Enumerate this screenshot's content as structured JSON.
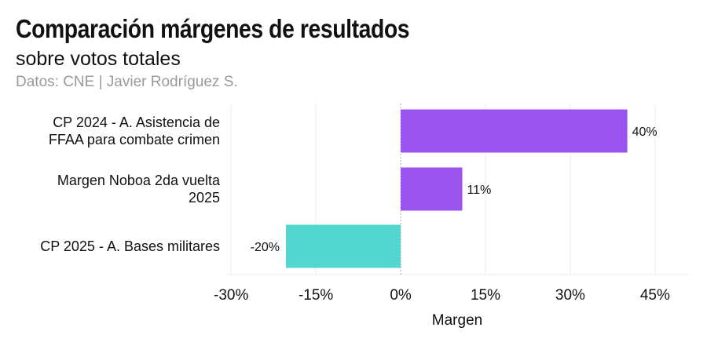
{
  "chart_data": {
    "type": "bar",
    "orientation": "horizontal",
    "title": "Comparación márgenes de resultados",
    "subtitle": "sobre votos totales",
    "caption": "Datos: CNE | Javier Rodríguez S.",
    "xlabel": "Margen",
    "ylabel": "",
    "xlim": [
      -31,
      51
    ],
    "xticks": [
      -30,
      -15,
      0,
      15,
      30,
      45
    ],
    "xtick_labels": [
      "-30%",
      "-15%",
      "0%",
      "15%",
      "30%",
      "45%"
    ],
    "grid": true,
    "categories": [
      [
        "CP 2024 - A. Asistencia de",
        "FFAA para combate crimen"
      ],
      [
        "Margen Noboa 2da vuelta",
        "2025"
      ],
      [
        "CP 2025 - A. Bases militares"
      ]
    ],
    "values": [
      40.1,
      10.9,
      -20.3
    ],
    "data_labels": [
      "40%",
      "11%",
      "-20%"
    ],
    "colors": {
      "positive": "#9b53f0",
      "negative": "#52d6cf"
    }
  }
}
